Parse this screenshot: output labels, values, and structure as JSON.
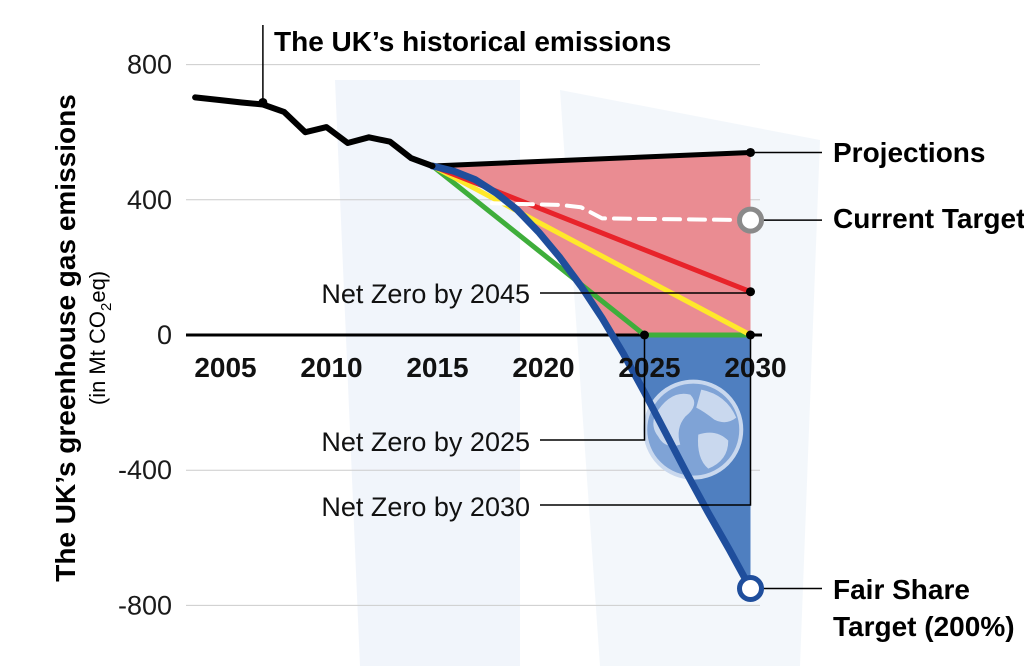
{
  "chart_data": {
    "type": "line",
    "title": "",
    "ylabel": "The UK’s greenhouse gas emissions",
    "ylabel_sub_prefix": "(in Mt CO",
    "ylabel_sub_subscript": "2",
    "ylabel_sub_suffix": "eq)",
    "xlim": [
      2003,
      2031.5
    ],
    "ylim": [
      -850,
      850
    ],
    "yticks": [
      800,
      400,
      0,
      -400,
      -800
    ],
    "ytick_labels": [
      "800",
      "400",
      "0",
      "-400",
      "-800"
    ],
    "xticks": [
      2005,
      2010,
      2015,
      2020,
      2025,
      2030
    ],
    "xtick_labels": [
      "2005",
      "2010",
      "2015",
      "2020",
      "2025",
      "2030"
    ],
    "grid": true,
    "colors": {
      "historical": "#000000",
      "projections": "#000000",
      "current_target": "#ffffff",
      "net_zero_2045": "#e8232a",
      "net_zero_2030": "#ffe82b",
      "net_zero_2025": "#3fae3b",
      "fair_share": "#1f4e9c",
      "fill_positive": "#ea8c92",
      "fill_negative": "#4f7fc0",
      "grid": "#cccccc",
      "gray_label": "#8a8a8a"
    },
    "series": [
      {
        "key": "historical",
        "x": [
          2003.8,
          2005,
          2006,
          2007,
          2008,
          2009,
          2010,
          2011,
          2012,
          2013,
          2014,
          2015
        ],
        "y": [
          703,
          695,
          688,
          682,
          660,
          600,
          615,
          568,
          585,
          572,
          523,
          500
        ]
      },
      {
        "key": "projections",
        "x": [
          2015,
          2030
        ],
        "y": [
          500,
          540
        ]
      },
      {
        "key": "current_target",
        "x": [
          2017.8,
          2021,
          2022,
          2023,
          2030
        ],
        "y": [
          390,
          385,
          378,
          345,
          340
        ]
      },
      {
        "key": "net_zero_2045",
        "x": [
          2015,
          2030
        ],
        "y": [
          500,
          128
        ]
      },
      {
        "key": "net_zero_2030",
        "x": [
          2015,
          2030
        ],
        "y": [
          500,
          0
        ]
      },
      {
        "key": "net_zero_2025",
        "x": [
          2015,
          2025,
          2030
        ],
        "y": [
          500,
          0,
          0
        ]
      },
      {
        "key": "fair_share",
        "x": [
          2015,
          2016,
          2017,
          2018,
          2019,
          2020,
          2021,
          2022,
          2023,
          2024,
          2025,
          2026,
          2027,
          2028,
          2029,
          2030
        ],
        "y": [
          500,
          485,
          460,
          420,
          370,
          305,
          230,
          145,
          50,
          -55,
          -170,
          -290,
          -410,
          -525,
          -635,
          -750
        ]
      }
    ],
    "annotations": {
      "historical": "The UK’s historical emissions",
      "projections": "Projections",
      "current_target": "Current Target",
      "net_zero_2045": "Net Zero by 2045",
      "net_zero_2025": "Net Zero by 2025",
      "net_zero_2030": "Net Zero by 2030",
      "fair_share_line1": "Fair Share",
      "fair_share_line2": "Target (200%)"
    }
  }
}
